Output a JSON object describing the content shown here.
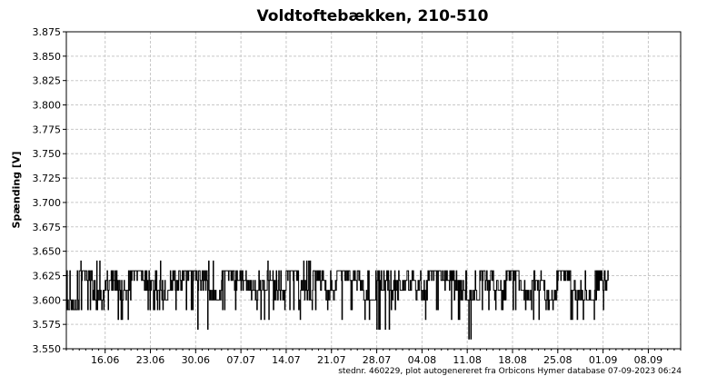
{
  "chart_data": {
    "type": "line",
    "title": "Voldtoftebækken, 210-510",
    "ylabel": "Spænding [V]",
    "xlabel": "",
    "ylim": [
      3.55,
      3.875
    ],
    "yticks": [
      "3.550",
      "3.575",
      "3.600",
      "3.625",
      "3.650",
      "3.675",
      "3.700",
      "3.725",
      "3.750",
      "3.775",
      "3.800",
      "3.825",
      "3.850",
      "3.875"
    ],
    "xlim_days": [
      0,
      95
    ],
    "xticks": [
      {
        "label": "16.06",
        "day": 6
      },
      {
        "label": "23.06",
        "day": 13
      },
      {
        "label": "30.06",
        "day": 20
      },
      {
        "label": "07.07",
        "day": 27
      },
      {
        "label": "14.07",
        "day": 34
      },
      {
        "label": "21.07",
        "day": 41
      },
      {
        "label": "28.07",
        "day": 48
      },
      {
        "label": "04.08",
        "day": 55
      },
      {
        "label": "11.08",
        "day": 62
      },
      {
        "label": "18.08",
        "day": 69
      },
      {
        "label": "25.08",
        "day": 76
      },
      {
        "label": "01.09",
        "day": 83
      },
      {
        "label": "08.09",
        "day": 90
      }
    ],
    "grid": true,
    "series": [
      {
        "color": "#000000",
        "x_days": [
          0,
          2,
          4,
          6,
          8,
          10,
          12,
          14,
          16,
          18,
          20,
          22,
          24,
          26,
          28,
          30,
          32,
          34,
          36,
          38,
          40,
          42,
          44,
          46,
          48,
          50,
          52,
          54,
          56,
          58,
          60,
          62,
          64,
          66,
          68,
          70,
          72,
          74,
          76,
          78,
          80,
          82,
          83.8
        ],
        "values": [
          3.59,
          3.63,
          3.61,
          3.62,
          3.61,
          3.63,
          3.62,
          3.61,
          3.62,
          3.63,
          3.62,
          3.6,
          3.63,
          3.62,
          3.61,
          3.62,
          3.61,
          3.63,
          3.61,
          3.62,
          3.61,
          3.63,
          3.62,
          3.6,
          3.62,
          3.61,
          3.62,
          3.61,
          3.63,
          3.62,
          3.61,
          3.6,
          3.62,
          3.61,
          3.63,
          3.61,
          3.62,
          3.6,
          3.63,
          3.61,
          3.6,
          3.62,
          3.62
        ],
        "min_values": [
          3.58,
          3.59,
          3.59,
          3.59,
          3.58,
          3.6,
          3.59,
          3.59,
          3.59,
          3.59,
          3.57,
          3.59,
          3.59,
          3.59,
          3.59,
          3.58,
          3.59,
          3.59,
          3.58,
          3.59,
          3.59,
          3.58,
          3.59,
          3.58,
          3.57,
          3.59,
          3.58,
          3.58,
          3.59,
          3.58,
          3.58,
          3.56,
          3.59,
          3.59,
          3.59,
          3.59,
          3.58,
          3.59,
          3.57,
          3.58,
          3.58,
          3.59,
          3.59
        ],
        "max_values": [
          3.63,
          3.64,
          3.64,
          3.63,
          3.63,
          3.63,
          3.63,
          3.64,
          3.63,
          3.63,
          3.63,
          3.64,
          3.63,
          3.63,
          3.63,
          3.64,
          3.63,
          3.63,
          3.64,
          3.63,
          3.63,
          3.63,
          3.63,
          3.63,
          3.63,
          3.63,
          3.63,
          3.63,
          3.63,
          3.63,
          3.63,
          3.63,
          3.63,
          3.63,
          3.63,
          3.63,
          3.63,
          3.63,
          3.63,
          3.63,
          3.63,
          3.63,
          3.63
        ]
      }
    ]
  },
  "footer": {
    "note": "stednr. 460229, plot autogenereret fra Orbicons Hymer database 07-09-2023 06:24"
  }
}
